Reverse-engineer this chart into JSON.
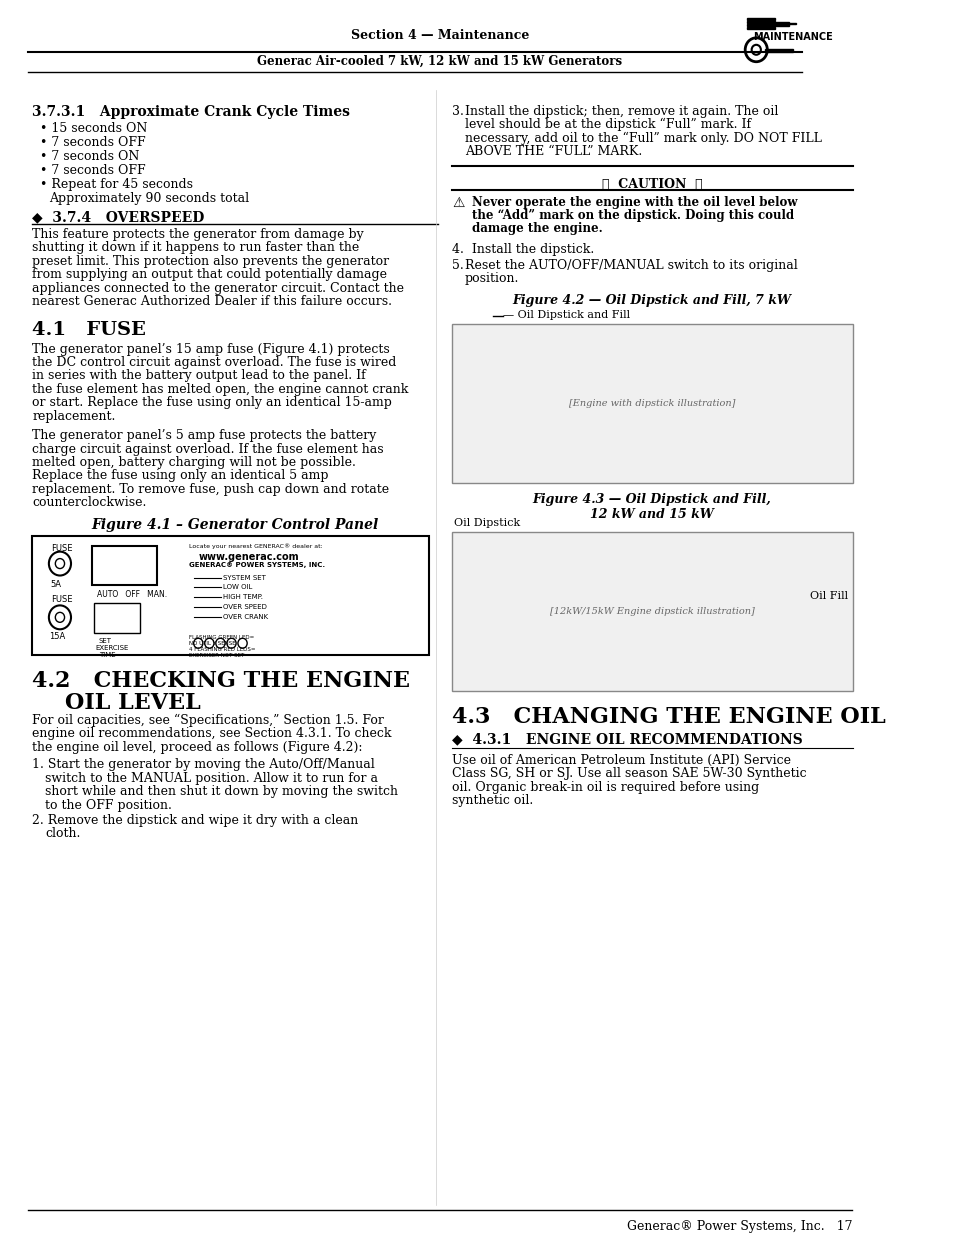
{
  "page_bg": "#ffffff",
  "header_section": "Section 4 — Maintenance",
  "header_subtitle": "Generac Air-cooled 7 kW, 12 kW and 15 kW Generators",
  "header_tag": "MAINTENANCE",
  "section_371_title": "3.7.3.1   Approximate Crank Cycle Times",
  "section_371_bullets": [
    "15 seconds ON",
    "7 seconds OFF",
    "7 seconds ON",
    "7 seconds OFF",
    "Repeat for 45 seconds\n    Approximately 90 seconds total"
  ],
  "section_374_title": "◆  3.7.4   OVERSPEED",
  "section_374_body": "This feature protects the generator from damage by shutting it down if it happens to run faster than the preset limit. This protection also prevents the generator from supplying an output that could potentially damage appliances connected to the generator circuit. Contact the nearest Generac Authorized Dealer if this failure occurs.",
  "section_41_title": "4.1   FUSE",
  "section_41_body1": "The generator panel’s 15 amp fuse (Figure 4.1) protects the DC control circuit against overload. The fuse is wired in series with the battery output lead to the panel. If the fuse element has melted open, the engine cannot crank or start. Replace the fuse using only an identical 15-amp replacement.",
  "section_41_body2": "The generator panel’s 5 amp fuse protects the battery charge circuit against overload. If the fuse element has melted open, battery charging will not be possible. Replace the fuse using only an identical 5 amp replacement. To remove fuse, push cap down and rotate counterclockwise.",
  "fig41_caption": "Figure 4.1 – Generator Control Panel",
  "section_42_title": "4.2   CHECKING THE ENGINE\n      OIL LEVEL",
  "section_42_body": "For oil capacities, see “Specifications,” Section 1.5. For engine oil recommendations, see Section 4.3.1. To check the engine oil level, proceed as follows (Figure 4.2):",
  "section_42_steps": [
    "Start the generator by moving the Auto/Off/Manual switch to the MANUAL position. Allow it to run for a short while and then shut it down by moving the switch to the OFF position.",
    "Remove the dipstick and wipe it dry with a clean cloth."
  ],
  "right_step3": "Install the dipstick; then, remove it again. The oil level should be at the dipstick “Full” mark. If necessary, add oil to the “Full” mark only. DO NOT FILL ABOVE THE “FULL” MARK.",
  "caution_text": "Never operate the engine with the oil level below the “Add” mark on the dipstick. Doing this could damage the engine.",
  "right_step4": "Install the dipstick.",
  "right_step5": "Reset the AUTO/OFF/MANUAL switch to its original position.",
  "fig42_caption": "Figure 4.2 — Oil Dipstick and Fill, 7 kW",
  "fig42_label": "Oil Dipstick and Fill",
  "fig43_caption": "Figure 4.3 — Oil Dipstick and Fill,\n12 kW and 15 kW",
  "fig43_label1": "Oil Dipstick",
  "fig43_label2": "Oil Fill",
  "section_43_title": "4.3   CHANGING THE ENGINE OIL",
  "section_431_title": "◆  4.3.1   ENGINE OIL RECOMMENDATIONS",
  "section_431_body": "Use oil of American Petroleum Institute (API) Service Class SG, SH or SJ. Use all season SAE 5W-30 Synthetic oil. Organic break-in oil is required before using synthetic oil.",
  "footer": "Generac® Power Systems, Inc.   17"
}
